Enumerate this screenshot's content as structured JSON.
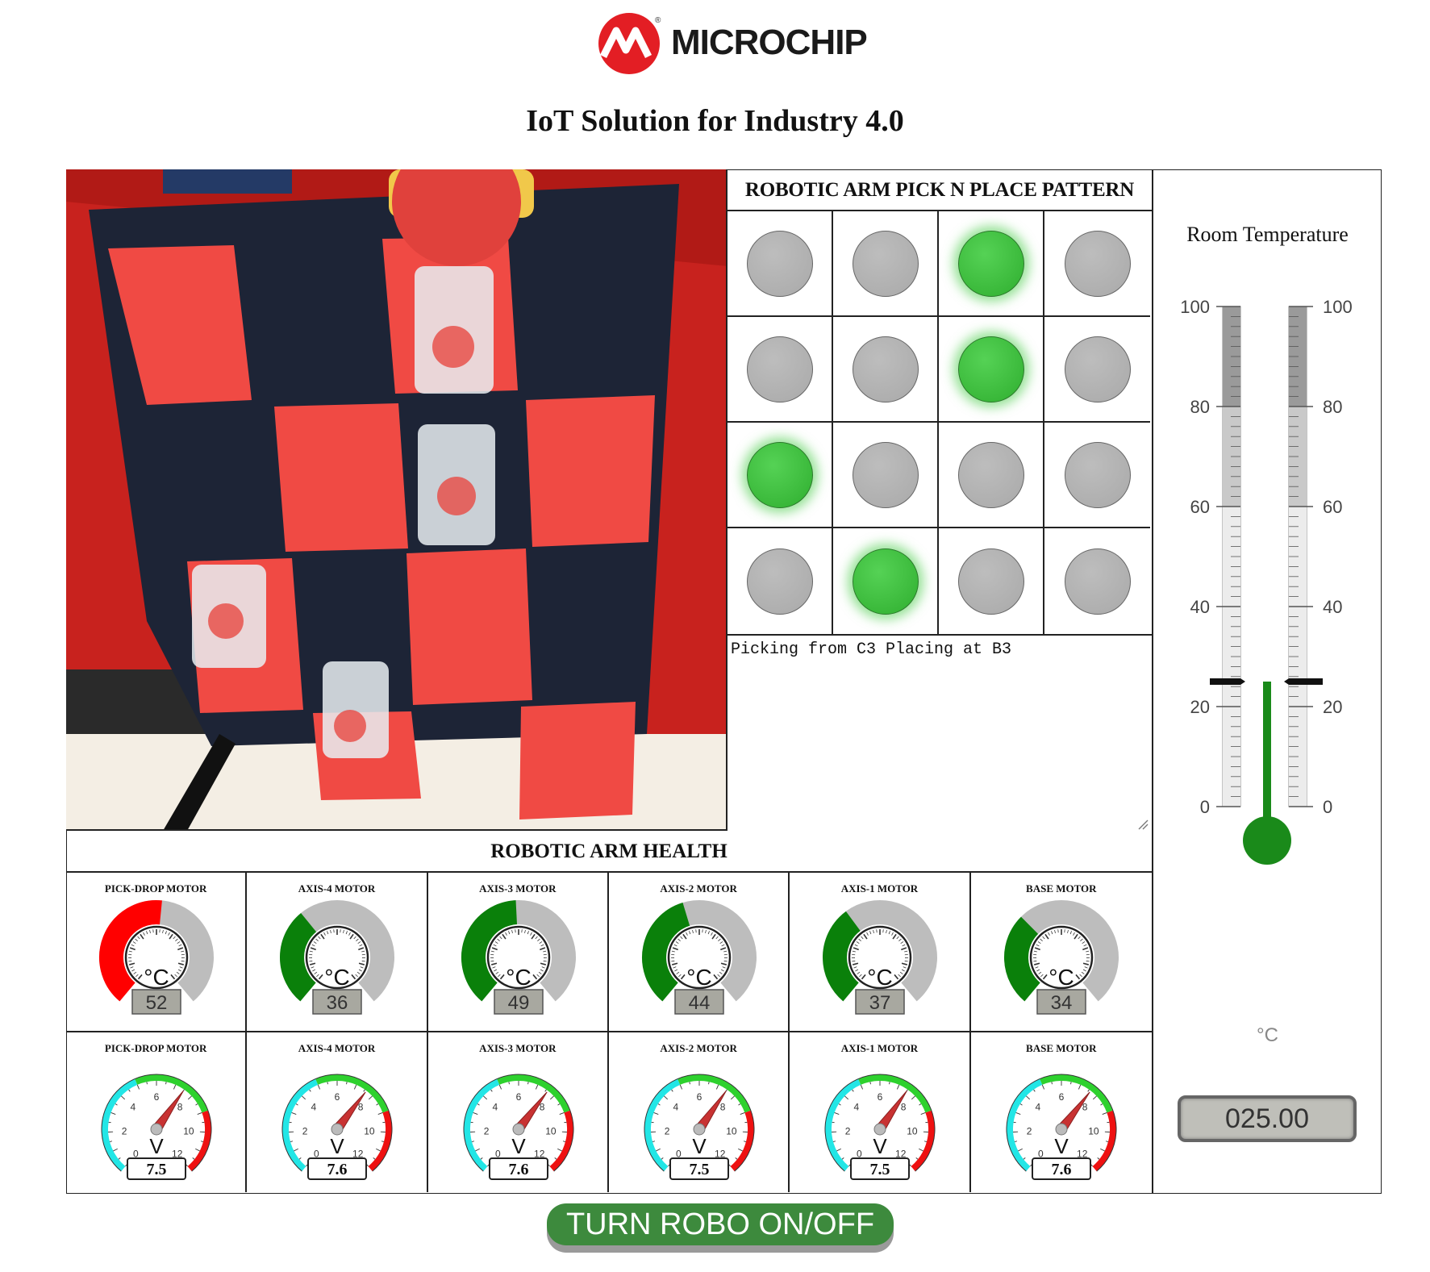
{
  "brand": {
    "logo_text": "MICROCHIP",
    "logo_color": "#e31e24"
  },
  "page_title": "IoT Solution for Industry 4.0",
  "pattern": {
    "title": "ROBOTIC ARM PICK N PLACE PATTERN",
    "leds": [
      [
        false,
        false,
        true,
        false
      ],
      [
        false,
        false,
        true,
        false
      ],
      [
        true,
        false,
        false,
        false
      ],
      [
        false,
        true,
        false,
        false
      ]
    ],
    "log": "Picking from C3 Placing at B3"
  },
  "temperature": {
    "title": "Room Temperature",
    "value": 25,
    "display": "025.00",
    "unit": "°C",
    "scale_min": 0,
    "scale_max": 100,
    "tick_labels": [
      "100",
      "80",
      "60",
      "40",
      "20",
      "0"
    ],
    "fill_color": "#1a8a1a"
  },
  "health": {
    "title": "ROBOTIC ARM HEALTH",
    "temp_gauges": [
      {
        "label": "PICK-DROP MOTOR",
        "value": 52,
        "display": "52",
        "unit": "°C",
        "color": "#ff0000"
      },
      {
        "label": "AXIS-4 MOTOR",
        "value": 36,
        "display": "36",
        "unit": "°C",
        "color": "#0a800a"
      },
      {
        "label": "AXIS-3 MOTOR",
        "value": 49,
        "display": "49",
        "unit": "°C",
        "color": "#0a800a"
      },
      {
        "label": "AXIS-2 MOTOR",
        "value": 44,
        "display": "44",
        "unit": "°C",
        "color": "#0a800a"
      },
      {
        "label": "AXIS-1 MOTOR",
        "value": 37,
        "display": "37",
        "unit": "°C",
        "color": "#0a800a"
      },
      {
        "label": "BASE MOTOR",
        "value": 34,
        "display": "34",
        "unit": "°C",
        "color": "#0a800a"
      }
    ],
    "voltage_gauges": [
      {
        "label": "PICK-DROP MOTOR",
        "value": 7.5,
        "display": "7.5",
        "unit": "V"
      },
      {
        "label": "AXIS-4 MOTOR",
        "value": 7.6,
        "display": "7.6",
        "unit": "V"
      },
      {
        "label": "AXIS-3 MOTOR",
        "value": 7.6,
        "display": "7.6",
        "unit": "V"
      },
      {
        "label": "AXIS-2 MOTOR",
        "value": 7.5,
        "display": "7.5",
        "unit": "V"
      },
      {
        "label": "AXIS-1 MOTOR",
        "value": 7.5,
        "display": "7.5",
        "unit": "V"
      },
      {
        "label": "BASE MOTOR",
        "value": 7.6,
        "display": "7.6",
        "unit": "V"
      }
    ],
    "voltage_ticks": [
      "0",
      "2",
      "4",
      "6",
      "8",
      "10",
      "12"
    ]
  },
  "toggle_button": {
    "label": "TURN ROBO ON/OFF"
  }
}
